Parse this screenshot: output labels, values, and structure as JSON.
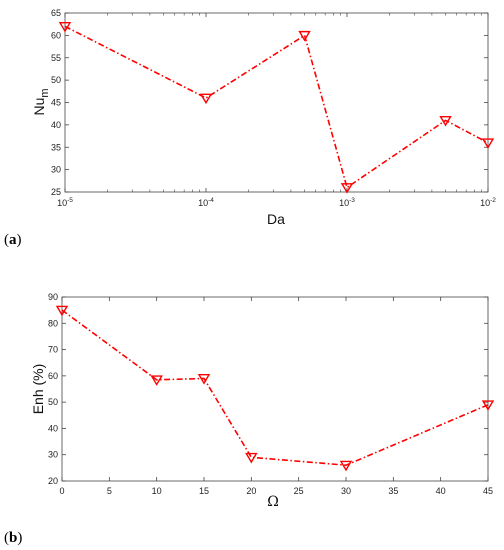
{
  "chart_data": [
    {
      "type": "line",
      "panel_label": {
        "open": "(",
        "letter": "a",
        "close": ")"
      },
      "xlabel": "Da",
      "ylabel": {
        "base": "Nu",
        "sub": "m"
      },
      "xscale": "log",
      "xlim": [
        1e-05,
        0.01
      ],
      "ylim": [
        25,
        65
      ],
      "xticks": [
        {
          "value": 1e-05,
          "base": "10",
          "exp": "-5"
        },
        {
          "value": 0.0001,
          "base": "10",
          "exp": "-4"
        },
        {
          "value": 0.001,
          "base": "10",
          "exp": "-3"
        },
        {
          "value": 0.01,
          "base": "10",
          "exp": "-2"
        }
      ],
      "yticks": [
        25,
        30,
        35,
        40,
        45,
        50,
        55,
        60,
        65
      ],
      "grid": false,
      "series": [
        {
          "color": "#ff0000",
          "marker": "triangle-down",
          "line_style": "dash-dot",
          "x": [
            1e-05,
            0.0001,
            0.0005,
            0.001,
            0.005,
            0.01
          ],
          "y": [
            62,
            46,
            60,
            26,
            41,
            36
          ]
        }
      ]
    },
    {
      "type": "line",
      "panel_label": {
        "open": "(",
        "letter": "b",
        "close": ")"
      },
      "xlabel": "Ω",
      "ylabel": "Enh (%)",
      "xscale": "linear",
      "xlim": [
        0,
        45
      ],
      "ylim": [
        20,
        90
      ],
      "xticks": [
        0,
        5,
        10,
        15,
        20,
        25,
        30,
        35,
        40,
        45
      ],
      "yticks": [
        20,
        30,
        40,
        50,
        60,
        70,
        80,
        90
      ],
      "grid": false,
      "series": [
        {
          "color": "#ff0000",
          "marker": "triangle-down",
          "line_style": "dash-dot",
          "x": [
            0,
            10,
            15,
            20,
            30,
            45
          ],
          "y": [
            85,
            58.5,
            59,
            29,
            26,
            49
          ]
        }
      ]
    }
  ]
}
